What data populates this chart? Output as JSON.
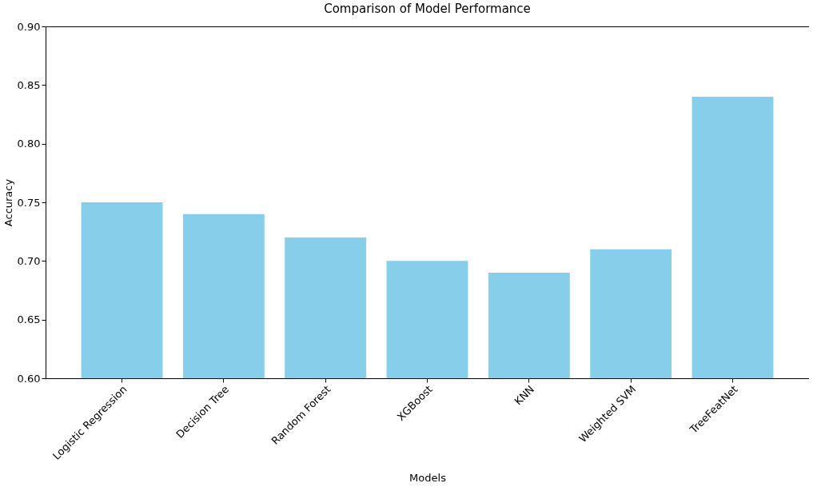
{
  "chart_data": {
    "type": "bar",
    "title": "Comparison of Model Performance",
    "xlabel": "Models",
    "ylabel": "Accuracy",
    "categories": [
      "Logistic Regression",
      "Decision Tree",
      "Random Forest",
      "XGBoost",
      "KNN",
      "Weighted SVM",
      "TreeFeatNet"
    ],
    "values": [
      0.75,
      0.74,
      0.72,
      0.7,
      0.69,
      0.71,
      0.84
    ],
    "color": "#87ceeb",
    "ylim": [
      0.6,
      0.9
    ],
    "yticks": [
      {
        "value": 0.6,
        "label": "0.60"
      },
      {
        "value": 0.65,
        "label": "0.65"
      },
      {
        "value": 0.7,
        "label": "0.70"
      },
      {
        "value": 0.75,
        "label": "0.75"
      },
      {
        "value": 0.8,
        "label": "0.80"
      },
      {
        "value": 0.85,
        "label": "0.85"
      },
      {
        "value": 0.9,
        "label": "0.90"
      }
    ],
    "grid": false
  }
}
